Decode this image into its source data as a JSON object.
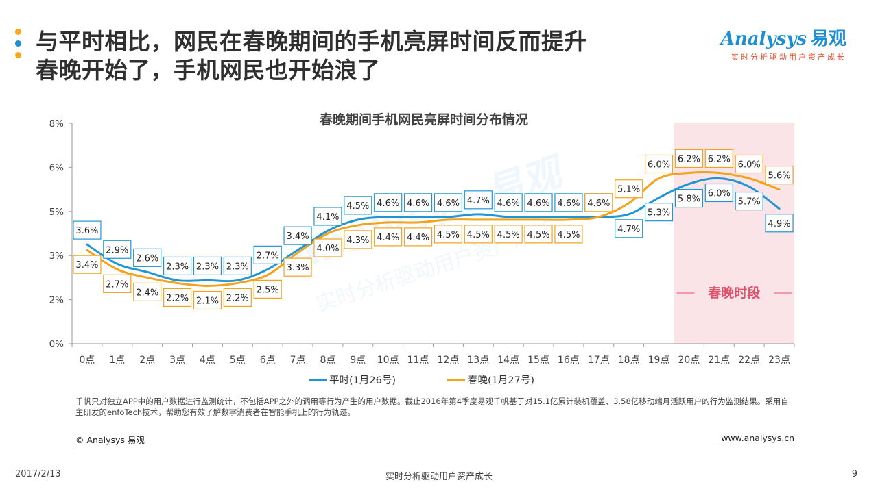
{
  "header": {
    "title_line1": "与平时相比，网民在春晚期间的手机亮屏时间反而提升",
    "title_line2": "春晚开始了，手机网民也开始浪了",
    "dot_colors": [
      "#f5a623",
      "#1d8fd0",
      "#f5a623"
    ]
  },
  "logo": {
    "brand": "nalysys",
    "brand_initial": "A",
    "brand_cn": "易观",
    "tagline": "实时分析驱动用户资产成长"
  },
  "chart_data": {
    "type": "line",
    "title": "春晚期间手机网民亮屏时间分布情况",
    "categories": [
      "0点",
      "1点",
      "2点",
      "3点",
      "4点",
      "5点",
      "6点",
      "7点",
      "8点",
      "9点",
      "10点",
      "11点",
      "12点",
      "13点",
      "14点",
      "15点",
      "16点",
      "17点",
      "18点",
      "19点",
      "20点",
      "21点",
      "22点",
      "23点"
    ],
    "y_ticks": [
      "0%",
      "2%",
      "3%",
      "5%",
      "6%",
      "8%"
    ],
    "series": [
      {
        "name": "平时(1月26号)",
        "color": "#1f96d3",
        "values": [
          3.6,
          2.9,
          2.6,
          2.3,
          2.3,
          2.3,
          2.7,
          3.4,
          4.1,
          4.5,
          4.6,
          4.6,
          4.6,
          4.7,
          4.6,
          4.6,
          4.6,
          4.6,
          4.7,
          5.3,
          5.8,
          6.0,
          5.7,
          4.9
        ],
        "labels": [
          "3.6%",
          "2.9%",
          "2.6%",
          "2.3%",
          "2.3%",
          "2.3%",
          "2.7%",
          "3.4%",
          "4.1%",
          "4.5%",
          "4.6%",
          "4.6%",
          "4.6%",
          "4.7%",
          "4.6%",
          "4.6%",
          "4.6%",
          "4.6%",
          "4.7%",
          "5.3%",
          "5.8%",
          "6.0%",
          "5.7%",
          "4.9%"
        ]
      },
      {
        "name": "春晚(1月27号)",
        "color": "#f2a21c",
        "values": [
          3.4,
          2.7,
          2.4,
          2.2,
          2.1,
          2.2,
          2.5,
          3.3,
          4.0,
          4.3,
          4.4,
          4.4,
          4.5,
          4.5,
          4.5,
          4.5,
          4.5,
          4.6,
          5.1,
          6.0,
          6.2,
          6.2,
          6.0,
          5.6
        ],
        "labels": [
          "3.4%",
          "2.7%",
          "2.4%",
          "2.2%",
          "2.1%",
          "2.2%",
          "2.5%",
          "3.3%",
          "4.0%",
          "4.3%",
          "4.4%",
          "4.4%",
          "4.5%",
          "4.5%",
          "4.5%",
          "4.5%",
          "4.5%",
          "4.6%",
          "5.1%",
          "6.0%",
          "6.2%",
          "6.2%",
          "6.0%",
          "5.6%"
        ]
      }
    ],
    "highlight": {
      "label": "春晚时段",
      "from_category": "20点",
      "to_category": "23点",
      "color": "#fbe4e8",
      "label_color": "#e0506a"
    },
    "watermark": {
      "brand": "Analysys 易观",
      "tagline": "实时分析驱动用户资产成长"
    },
    "grid": false,
    "legend_position": "bottom"
  },
  "notes": {
    "text": "千帆只对独立APP中的用户数据进行监测统计，不包括APP之外的调用等行为产生的用户数据。截止2016年第4季度易观千帆基于对15.1亿累计装机覆盖、3.58亿移动端月活跃用户的行为监测结果。采用自主研发的enfoTech技术，帮助您有效了解数字消费者在智能手机上的行为轨迹。",
    "copyright": "© Analysys 易观",
    "website": "www.analysys.cn"
  },
  "footer": {
    "date": "2017/2/13",
    "tagline": "实时分析驱动用户资产成长",
    "page": "9"
  }
}
